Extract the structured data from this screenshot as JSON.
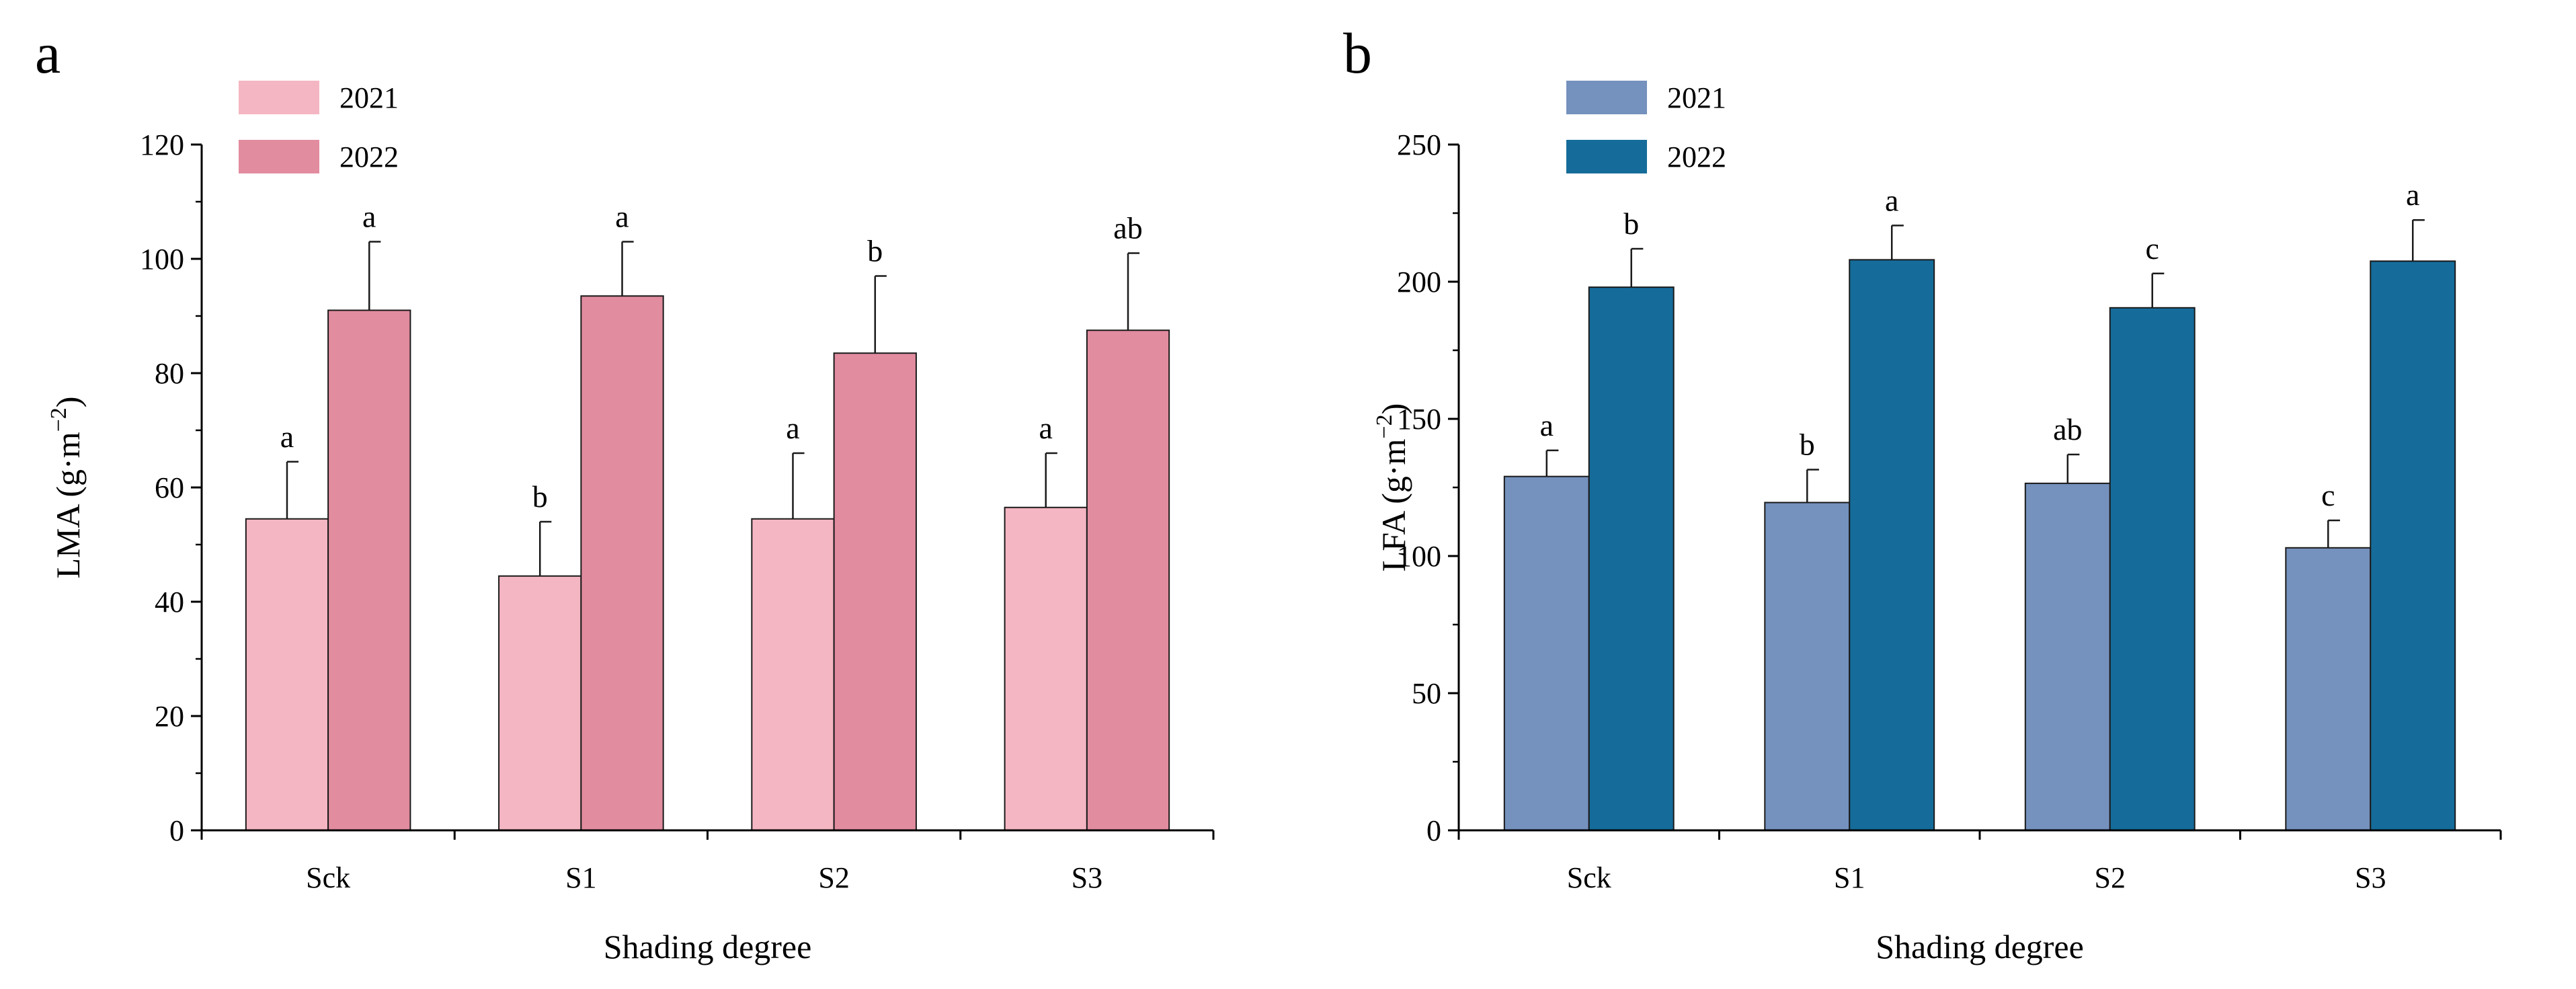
{
  "chart_data": [
    {
      "type": "bar",
      "panel_label": "a",
      "categories": [
        "Sck",
        "S1",
        "S2",
        "S3"
      ],
      "xlabel": "Shading degree",
      "ylabel_main": "LMA (g·m",
      "ylabel_exp": "−2",
      "ylabel_close": ")",
      "ylim": [
        0,
        120
      ],
      "yticks": [
        0,
        20,
        40,
        60,
        80,
        100,
        120
      ],
      "legend_position": "top-left",
      "grid": false,
      "series": [
        {
          "name": "2021",
          "color": "#f4b6c2",
          "values": [
            54.5,
            44.5,
            54.5,
            56.5
          ],
          "errors": [
            10.0,
            9.5,
            11.5,
            9.5
          ],
          "sig_letters": [
            "a",
            "b",
            "a",
            "a"
          ]
        },
        {
          "name": "2022",
          "color": "#e28ca0",
          "values": [
            91.0,
            93.5,
            83.5,
            87.5
          ],
          "errors": [
            12.0,
            9.5,
            13.5,
            13.5
          ],
          "sig_letters": [
            "a",
            "a",
            "b",
            "ab"
          ]
        }
      ]
    },
    {
      "type": "bar",
      "panel_label": "b",
      "categories": [
        "Sck",
        "S1",
        "S2",
        "S3"
      ],
      "xlabel": "Shading degree",
      "ylabel_main": "LFA (g·m",
      "ylabel_exp": "−2",
      "ylabel_close": ")",
      "ylim": [
        0,
        250
      ],
      "yticks": [
        0,
        50,
        100,
        150,
        200,
        250
      ],
      "legend_position": "top-left",
      "grid": false,
      "series": [
        {
          "name": "2021",
          "color": "#7591bd",
          "values": [
            129,
            119.5,
            126.5,
            103
          ],
          "errors": [
            9.5,
            12,
            10.5,
            10
          ],
          "sig_letters": [
            "a",
            "b",
            "ab",
            "c"
          ]
        },
        {
          "name": "2022",
          "color": "#156c9a",
          "values": [
            198,
            208,
            190.5,
            207.5
          ],
          "errors": [
            14,
            12.5,
            12.5,
            15
          ],
          "sig_letters": [
            "b",
            "a",
            "c",
            "a"
          ]
        }
      ]
    }
  ]
}
